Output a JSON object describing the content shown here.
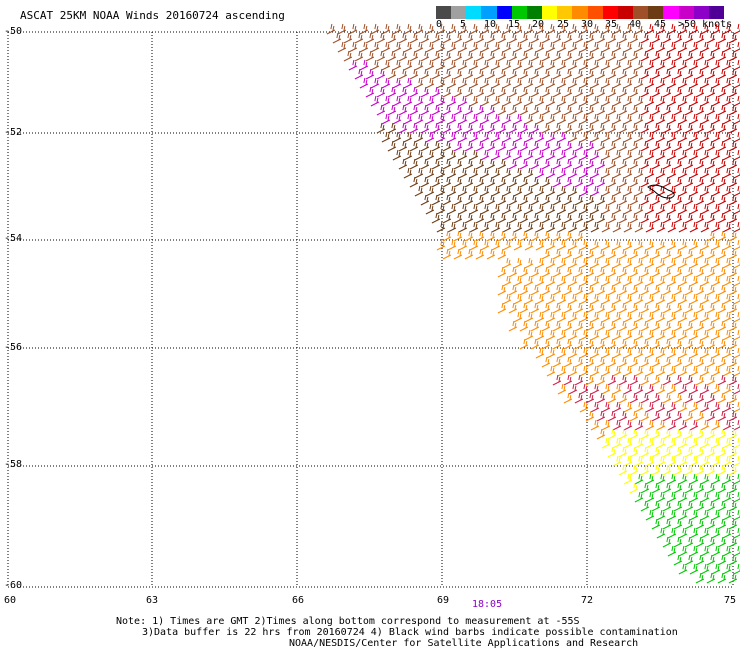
{
  "title": "ASCAT 25KM NOAA Winds 20160724 ascending",
  "colorbar": {
    "colors": [
      "#4a4a4a",
      "#a0a0a0",
      "#00dcff",
      "#00a0ff",
      "#0000ff",
      "#00c800",
      "#008000",
      "#ffff00",
      "#ffc800",
      "#ff8c00",
      "#ff5000",
      "#ff0000",
      "#c80000",
      "#a05028",
      "#6e3c14",
      "#ff00ff",
      "#c800c8",
      "#8c00c8",
      "#500096"
    ],
    "tick_labels": [
      "0",
      "5",
      "10",
      "15",
      "20",
      "25",
      "30",
      "35",
      "40",
      "45",
      ">50 knots"
    ]
  },
  "axes": {
    "lat_labels": [
      "-50",
      "-52",
      "-54",
      "-56",
      "-58",
      "-60"
    ],
    "lon_labels": [
      "60",
      "63",
      "66",
      "69",
      "72",
      "75"
    ]
  },
  "time_label": "18:05",
  "notes": {
    "line1": "Note: 1) Times are GMT 2)Times along bottom correspond to measurement at -55S",
    "line2": "3)Data buffer is 22 hrs from 20160724 4) Black wind barbs indicate possible contamination",
    "line3": "NOAA/NESDIS/Center for Satellite Applications and Research"
  },
  "map_regions": [
    {
      "region": "northwest swath",
      "dominant_colors": [
        "#a05028",
        "#c80000",
        "#ff0000",
        "#ff8c00"
      ]
    },
    {
      "region": "central band",
      "dominant_colors": [
        "#c800c8",
        "#8c00c8",
        "#6e3c14"
      ]
    },
    {
      "region": "southeast swath",
      "dominant_colors": [
        "#ff8c00",
        "#ff0000",
        "#c80050",
        "#ffc800"
      ]
    },
    {
      "region": "south corner",
      "dominant_colors": [
        "#ffff00",
        "#00c800",
        "#008000"
      ]
    }
  ]
}
